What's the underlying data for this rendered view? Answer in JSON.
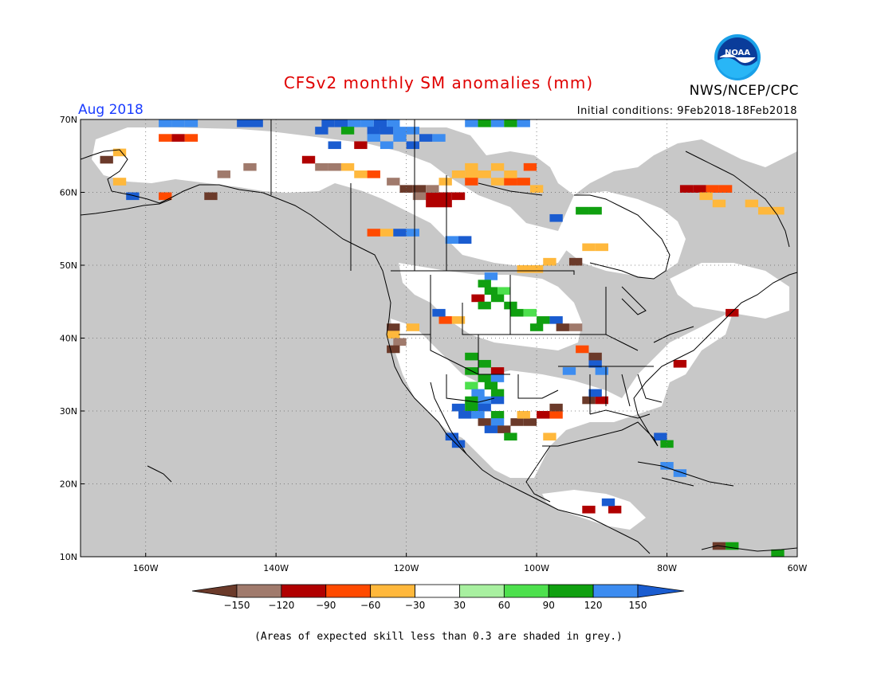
{
  "header": {
    "title": "CFSv2 monthly SM anomalies (mm)",
    "month": "Aug 2018",
    "agency": "NWS/NCEP/CPC",
    "initial_conditions": "Initial conditions: 9Feb2018-18Feb2018",
    "logo_text": "NOAA"
  },
  "map": {
    "lat_range": [
      10,
      70
    ],
    "lon_range": [
      -170,
      -60
    ],
    "lat_ticks": [
      {
        "value": 70,
        "label": "70N"
      },
      {
        "value": 60,
        "label": "60N"
      },
      {
        "value": 50,
        "label": "50N"
      },
      {
        "value": 40,
        "label": "40N"
      },
      {
        "value": 30,
        "label": "30N"
      },
      {
        "value": 20,
        "label": "20N"
      },
      {
        "value": 10,
        "label": "10N"
      }
    ],
    "lon_ticks": [
      {
        "value": -160,
        "label": "160W"
      },
      {
        "value": -140,
        "label": "140W"
      },
      {
        "value": -120,
        "label": "120W"
      },
      {
        "value": -100,
        "label": "100W"
      },
      {
        "value": -80,
        "label": "80W"
      },
      {
        "value": -60,
        "label": "60W"
      }
    ],
    "grid": "dotted",
    "background_skill_mask_color": "#c8c8c8"
  },
  "legend": {
    "bins": [
      {
        "color": "#6b3a2a"
      },
      {
        "color": "#a07a6c"
      },
      {
        "color": "#b00000"
      },
      {
        "color": "#ff4a00"
      },
      {
        "color": "#ffb83c"
      },
      {
        "color": "#ffffff"
      },
      {
        "color": "#a8f0a0"
      },
      {
        "color": "#4de04d"
      },
      {
        "color": "#10a010"
      },
      {
        "color": "#3c8cf0"
      },
      {
        "color": "#1a5cd0"
      }
    ],
    "labels": [
      "−150",
      "−120",
      "−90",
      "−60",
      "−30",
      "30",
      "60",
      "90",
      "120",
      "150"
    ]
  },
  "footnote": "(Areas of expected skill less than 0.3 are shaded in grey.)",
  "anomaly_cells": [
    {
      "lat": 69.5,
      "lon": -157,
      "c": 8
    },
    {
      "lat": 69.5,
      "lon": -155,
      "c": 8
    },
    {
      "lat": 69.5,
      "lon": -153,
      "c": 8
    },
    {
      "lat": 69.5,
      "lon": -145,
      "c": 9
    },
    {
      "lat": 69.5,
      "lon": -143,
      "c": 9
    },
    {
      "lat": 69.5,
      "lon": -132,
      "c": 9
    },
    {
      "lat": 69.5,
      "lon": -130,
      "c": 9
    },
    {
      "lat": 69.5,
      "lon": -128,
      "c": 8
    },
    {
      "lat": 69.5,
      "lon": -126,
      "c": 8
    },
    {
      "lat": 69.5,
      "lon": -124,
      "c": 9
    },
    {
      "lat": 69.5,
      "lon": -122,
      "c": 8
    },
    {
      "lat": 68.5,
      "lon": -133,
      "c": 9
    },
    {
      "lat": 68.5,
      "lon": -129,
      "c": 7
    },
    {
      "lat": 68.5,
      "lon": -125,
      "c": 9
    },
    {
      "lat": 68.5,
      "lon": -123,
      "c": 9
    },
    {
      "lat": 68.5,
      "lon": -121,
      "c": 8
    },
    {
      "lat": 68.5,
      "lon": -119,
      "c": 8
    },
    {
      "lat": 67.5,
      "lon": -125,
      "c": 8
    },
    {
      "lat": 67.5,
      "lon": -121,
      "c": 8
    },
    {
      "lat": 67.5,
      "lon": -117,
      "c": 9
    },
    {
      "lat": 67.5,
      "lon": -115,
      "c": 8
    },
    {
      "lat": 66.5,
      "lon": -131,
      "c": 9
    },
    {
      "lat": 66.5,
      "lon": -127,
      "c": 2
    },
    {
      "lat": 66.5,
      "lon": -123,
      "c": 8
    },
    {
      "lat": 66.5,
      "lon": -119,
      "c": 9
    },
    {
      "lat": 67.5,
      "lon": -157,
      "c": 3
    },
    {
      "lat": 67.5,
      "lon": -155,
      "c": 2
    },
    {
      "lat": 67.5,
      "lon": -153,
      "c": 3
    },
    {
      "lat": 65.5,
      "lon": -164,
      "c": 4
    },
    {
      "lat": 64.5,
      "lon": -166,
      "c": 0
    },
    {
      "lat": 61.5,
      "lon": -164,
      "c": 4
    },
    {
      "lat": 59.5,
      "lon": -162,
      "c": 9
    },
    {
      "lat": 59.5,
      "lon": -157,
      "c": 3
    },
    {
      "lat": 59.5,
      "lon": -150,
      "c": 0
    },
    {
      "lat": 62.5,
      "lon": -148,
      "c": 1
    },
    {
      "lat": 63.5,
      "lon": -144,
      "c": 1
    },
    {
      "lat": 64.5,
      "lon": -135,
      "c": 2
    },
    {
      "lat": 63.5,
      "lon": -133,
      "c": 1
    },
    {
      "lat": 63.5,
      "lon": -131,
      "c": 1
    },
    {
      "lat": 63.5,
      "lon": -129,
      "c": 4
    },
    {
      "lat": 62.5,
      "lon": -127,
      "c": 4
    },
    {
      "lat": 62.5,
      "lon": -125,
      "c": 3
    },
    {
      "lat": 61.5,
      "lon": -122,
      "c": 1
    },
    {
      "lat": 60.5,
      "lon": -120,
      "c": 0
    },
    {
      "lat": 60.5,
      "lon": -118,
      "c": 0
    },
    {
      "lat": 59.5,
      "lon": -118,
      "c": 1
    },
    {
      "lat": 59.5,
      "lon": -116,
      "c": 2
    },
    {
      "lat": 58.5,
      "lon": -116,
      "c": 2
    },
    {
      "lat": 58.5,
      "lon": -114,
      "c": 2
    },
    {
      "lat": 59.5,
      "lon": -114,
      "c": 2
    },
    {
      "lat": 60.5,
      "lon": -116,
      "c": 1
    },
    {
      "lat": 61.5,
      "lon": -114,
      "c": 4
    },
    {
      "lat": 62.5,
      "lon": -112,
      "c": 4
    },
    {
      "lat": 62.5,
      "lon": -110,
      "c": 4
    },
    {
      "lat": 62.5,
      "lon": -108,
      "c": 4
    },
    {
      "lat": 61.5,
      "lon": -106,
      "c": 4
    },
    {
      "lat": 61.5,
      "lon": -104,
      "c": 3
    },
    {
      "lat": 61.5,
      "lon": -102,
      "c": 3
    },
    {
      "lat": 63.5,
      "lon": -110,
      "c": 4
    },
    {
      "lat": 63.5,
      "lon": -106,
      "c": 4
    },
    {
      "lat": 63.5,
      "lon": -101,
      "c": 3
    },
    {
      "lat": 62.5,
      "lon": -104,
      "c": 4
    },
    {
      "lat": 61.5,
      "lon": -110,
      "c": 3
    },
    {
      "lat": 60.5,
      "lon": -100,
      "c": 4
    },
    {
      "lat": 59.5,
      "lon": -112,
      "c": 2
    },
    {
      "lat": 54.5,
      "lon": -125,
      "c": 3
    },
    {
      "lat": 54.5,
      "lon": -123,
      "c": 4
    },
    {
      "lat": 54.5,
      "lon": -121,
      "c": 9
    },
    {
      "lat": 54.5,
      "lon": -119,
      "c": 8
    },
    {
      "lat": 60.5,
      "lon": -77,
      "c": 2
    },
    {
      "lat": 60.5,
      "lon": -75,
      "c": 2
    },
    {
      "lat": 60.5,
      "lon": -73,
      "c": 3
    },
    {
      "lat": 60.5,
      "lon": -71,
      "c": 3
    },
    {
      "lat": 59.5,
      "lon": -74,
      "c": 4
    },
    {
      "lat": 58.5,
      "lon": -72,
      "c": 4
    },
    {
      "lat": 58.5,
      "lon": -67,
      "c": 4
    },
    {
      "lat": 57.5,
      "lon": -65,
      "c": 4
    },
    {
      "lat": 57.5,
      "lon": -63,
      "c": 4
    },
    {
      "lat": 52.5,
      "lon": -92,
      "c": 4
    },
    {
      "lat": 52.5,
      "lon": -90,
      "c": 4
    },
    {
      "lat": 49.5,
      "lon": -102,
      "c": 4
    },
    {
      "lat": 49.5,
      "lon": -100,
      "c": 4
    },
    {
      "lat": 50.5,
      "lon": -98,
      "c": 4
    },
    {
      "lat": 50.5,
      "lon": -94,
      "c": 0
    },
    {
      "lat": 56.5,
      "lon": -97,
      "c": 9
    },
    {
      "lat": 57.5,
      "lon": -93,
      "c": 7
    },
    {
      "lat": 57.5,
      "lon": -91,
      "c": 7
    },
    {
      "lat": 53.5,
      "lon": -113,
      "c": 8
    },
    {
      "lat": 53.5,
      "lon": -111,
      "c": 9
    },
    {
      "lat": 48.5,
      "lon": -107,
      "c": 8
    },
    {
      "lat": 47.5,
      "lon": -108,
      "c": 7
    },
    {
      "lat": 46.5,
      "lon": -107,
      "c": 7
    },
    {
      "lat": 46.5,
      "lon": -105,
      "c": 6
    },
    {
      "lat": 45.5,
      "lon": -109,
      "c": 2
    },
    {
      "lat": 45.5,
      "lon": -106,
      "c": 7
    },
    {
      "lat": 44.5,
      "lon": -108,
      "c": 7
    },
    {
      "lat": 44.5,
      "lon": -104,
      "c": 7
    },
    {
      "lat": 43.5,
      "lon": -103,
      "c": 7
    },
    {
      "lat": 43.5,
      "lon": -101,
      "c": 6
    },
    {
      "lat": 42.5,
      "lon": -99,
      "c": 7
    },
    {
      "lat": 42.5,
      "lon": -97,
      "c": 9
    },
    {
      "lat": 41.5,
      "lon": -100,
      "c": 7
    },
    {
      "lat": 41.5,
      "lon": -96,
      "c": 0
    },
    {
      "lat": 41.5,
      "lon": -94,
      "c": 1
    },
    {
      "lat": 42.5,
      "lon": -112,
      "c": 4
    },
    {
      "lat": 42.5,
      "lon": -114,
      "c": 3
    },
    {
      "lat": 43.5,
      "lon": -115,
      "c": 9
    },
    {
      "lat": 41.5,
      "lon": -122,
      "c": 0
    },
    {
      "lat": 41.5,
      "lon": -119,
      "c": 4
    },
    {
      "lat": 40.5,
      "lon": -122,
      "c": 4
    },
    {
      "lat": 39.5,
      "lon": -121,
      "c": 1
    },
    {
      "lat": 38.5,
      "lon": -122,
      "c": 0
    },
    {
      "lat": 37.5,
      "lon": -110,
      "c": 7
    },
    {
      "lat": 36.5,
      "lon": -108,
      "c": 7
    },
    {
      "lat": 35.5,
      "lon": -110,
      "c": 7
    },
    {
      "lat": 35.5,
      "lon": -106,
      "c": 2
    },
    {
      "lat": 34.5,
      "lon": -108,
      "c": 7
    },
    {
      "lat": 34.5,
      "lon": -106,
      "c": 8
    },
    {
      "lat": 33.5,
      "lon": -110,
      "c": 6
    },
    {
      "lat": 33.5,
      "lon": -107,
      "c": 7
    },
    {
      "lat": 32.5,
      "lon": -109,
      "c": 8
    },
    {
      "lat": 32.5,
      "lon": -106,
      "c": 7
    },
    {
      "lat": 31.5,
      "lon": -110,
      "c": 7
    },
    {
      "lat": 31.5,
      "lon": -108,
      "c": 8
    },
    {
      "lat": 31.5,
      "lon": -106,
      "c": 9
    },
    {
      "lat": 30.5,
      "lon": -112,
      "c": 9
    },
    {
      "lat": 30.5,
      "lon": -110,
      "c": 7
    },
    {
      "lat": 30.5,
      "lon": -108,
      "c": 9
    },
    {
      "lat": 29.5,
      "lon": -111,
      "c": 9
    },
    {
      "lat": 29.5,
      "lon": -109,
      "c": 8
    },
    {
      "lat": 29.5,
      "lon": -106,
      "c": 7
    },
    {
      "lat": 28.5,
      "lon": -108,
      "c": 0
    },
    {
      "lat": 28.5,
      "lon": -106,
      "c": 8
    },
    {
      "lat": 27.5,
      "lon": -107,
      "c": 9
    },
    {
      "lat": 27.5,
      "lon": -105,
      "c": 0
    },
    {
      "lat": 26.5,
      "lon": -104,
      "c": 7
    },
    {
      "lat": 26.5,
      "lon": -113,
      "c": 9
    },
    {
      "lat": 25.5,
      "lon": -112,
      "c": 9
    },
    {
      "lat": 28.5,
      "lon": -103,
      "c": 0
    },
    {
      "lat": 28.5,
      "lon": -101,
      "c": 0
    },
    {
      "lat": 29.5,
      "lon": -102,
      "c": 4
    },
    {
      "lat": 29.5,
      "lon": -99,
      "c": 2
    },
    {
      "lat": 29.5,
      "lon": -97,
      "c": 3
    },
    {
      "lat": 30.5,
      "lon": -97,
      "c": 0
    },
    {
      "lat": 26.5,
      "lon": -98,
      "c": 4
    },
    {
      "lat": 35.5,
      "lon": -95,
      "c": 8
    },
    {
      "lat": 35.5,
      "lon": -90,
      "c": 8
    },
    {
      "lat": 36.5,
      "lon": -91,
      "c": 9
    },
    {
      "lat": 38.5,
      "lon": -93,
      "c": 3
    },
    {
      "lat": 37.5,
      "lon": -91,
      "c": 0
    },
    {
      "lat": 31.5,
      "lon": -92,
      "c": 0
    },
    {
      "lat": 31.5,
      "lon": -90,
      "c": 2
    },
    {
      "lat": 32.5,
      "lon": -91,
      "c": 9
    },
    {
      "lat": 36.5,
      "lon": -78,
      "c": 2
    },
    {
      "lat": 43.5,
      "lon": -70,
      "c": 2
    },
    {
      "lat": 26.5,
      "lon": -81,
      "c": 9
    },
    {
      "lat": 25.5,
      "lon": -80,
      "c": 7
    },
    {
      "lat": 16.5,
      "lon": -92,
      "c": 2
    },
    {
      "lat": 16.5,
      "lon": -88,
      "c": 2
    },
    {
      "lat": 17.5,
      "lon": -89,
      "c": 9
    },
    {
      "lat": 22.5,
      "lon": -80,
      "c": 8
    },
    {
      "lat": 21.5,
      "lon": -78,
      "c": 8
    },
    {
      "lat": 11.5,
      "lon": -72,
      "c": 0
    },
    {
      "lat": 11.5,
      "lon": -70,
      "c": 7
    },
    {
      "lat": 10.5,
      "lon": -63,
      "c": 7
    },
    {
      "lat": 69.5,
      "lon": -110,
      "c": 8
    },
    {
      "lat": 69.5,
      "lon": -108,
      "c": 7
    },
    {
      "lat": 69.5,
      "lon": -106,
      "c": 8
    },
    {
      "lat": 69.5,
      "lon": -104,
      "c": 7
    },
    {
      "lat": 69.5,
      "lon": -102,
      "c": 8
    }
  ]
}
